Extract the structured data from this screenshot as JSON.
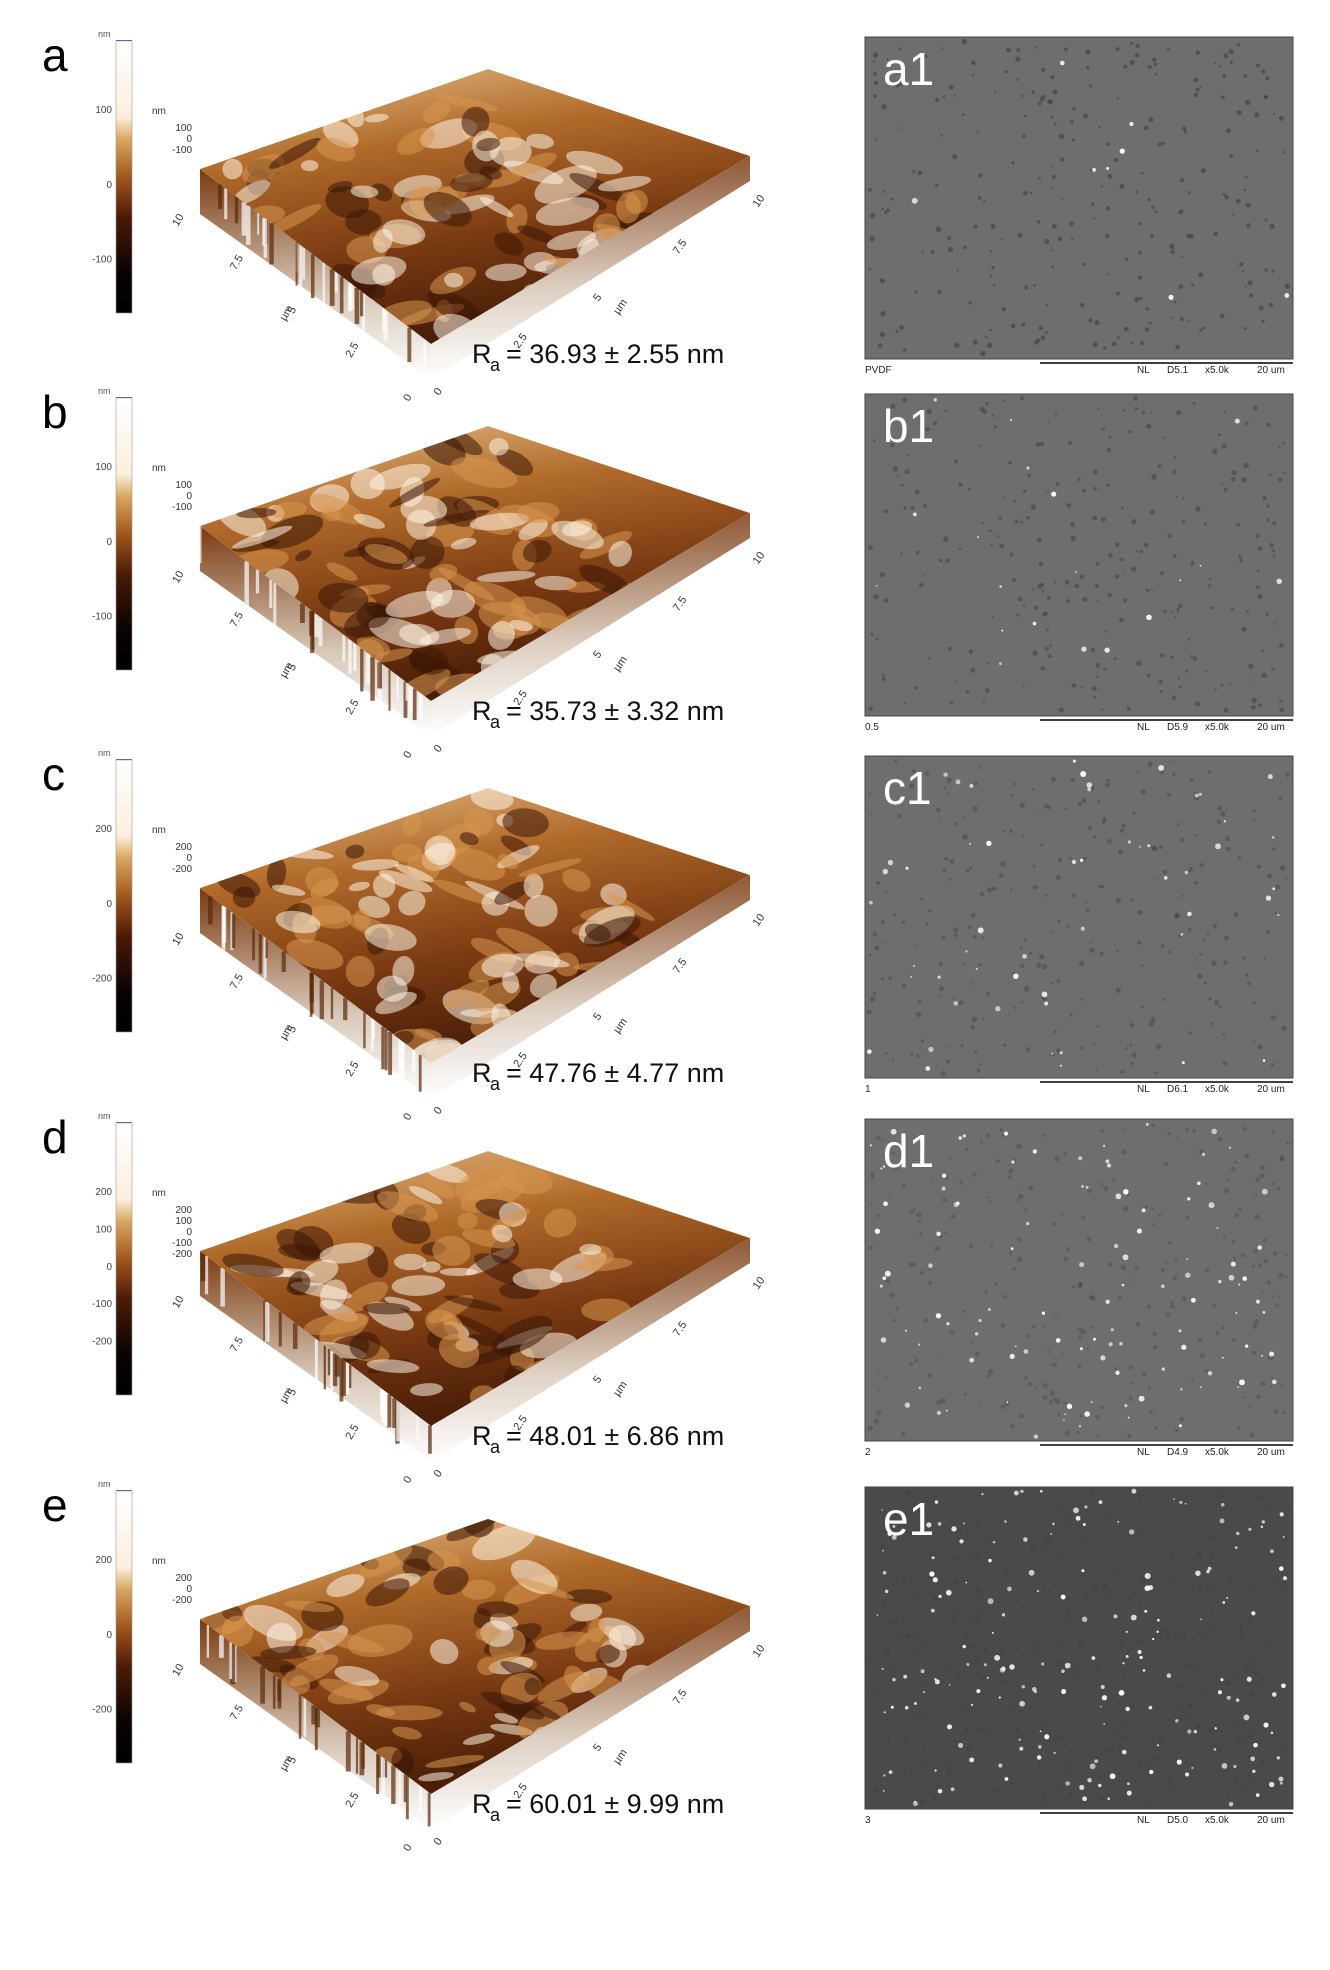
{
  "panels": [
    {
      "label": "a",
      "colorbar": {
        "unit": "nm",
        "ticks": [
          "100",
          "0",
          "-100"
        ]
      },
      "z_axis": {
        "unit": "nm",
        "ticks": [
          "100",
          "0",
          "-100"
        ]
      },
      "x_axis": {
        "unit": "µm",
        "ticks": [
          "0",
          "2.5",
          "5",
          "7.5",
          "10"
        ]
      },
      "y_axis": {
        "unit": "µm",
        "ticks": [
          "0",
          "2.5",
          "5",
          "7.5",
          "10"
        ]
      },
      "roughness": {
        "symbol": "R",
        "subscript": "a",
        "text": "= 36.93 ± 2.55 nm"
      },
      "sem": {
        "label": "a1",
        "info": [
          "PVDF",
          "NL",
          "D5.1",
          "x5.0k",
          "20 um"
        ]
      }
    },
    {
      "label": "b",
      "colorbar": {
        "unit": "nm",
        "ticks": [
          "100",
          "0",
          "-100"
        ]
      },
      "z_axis": {
        "unit": "nm",
        "ticks": [
          "100",
          "0",
          "-100"
        ]
      },
      "x_axis": {
        "unit": "µm",
        "ticks": [
          "0",
          "2.5",
          "5",
          "7.5",
          "10"
        ]
      },
      "y_axis": {
        "unit": "µm",
        "ticks": [
          "0",
          "2.5",
          "5",
          "7.5",
          "10"
        ]
      },
      "roughness": {
        "symbol": "R",
        "subscript": "a",
        "text": "= 35.73 ± 3.32 nm"
      },
      "sem": {
        "label": "b1",
        "info": [
          "0.5",
          "NL",
          "D5.9",
          "x5.0k",
          "20 um"
        ]
      }
    },
    {
      "label": "c",
      "colorbar": {
        "unit": "nm",
        "ticks": [
          "200",
          "0",
          "-200"
        ]
      },
      "z_axis": {
        "unit": "nm",
        "ticks": [
          "200",
          "0",
          "-200"
        ]
      },
      "x_axis": {
        "unit": "µm",
        "ticks": [
          "0",
          "2.5",
          "5",
          "7.5",
          "10"
        ]
      },
      "y_axis": {
        "unit": "µm",
        "ticks": [
          "0",
          "2.5",
          "5",
          "7.5",
          "10"
        ]
      },
      "roughness": {
        "symbol": "R",
        "subscript": "a",
        "text": "= 47.76 ± 4.77 nm"
      },
      "sem": {
        "label": "c1",
        "info": [
          "1",
          "NL",
          "D6.1",
          "x5.0k",
          "20 um"
        ]
      }
    },
    {
      "label": "d",
      "colorbar": {
        "unit": "nm",
        "ticks": [
          "200",
          "100",
          "0",
          "-100",
          "-200"
        ]
      },
      "z_axis": {
        "unit": "nm",
        "ticks": [
          "200",
          "100",
          "0",
          "-100",
          "-200"
        ]
      },
      "x_axis": {
        "unit": "µm",
        "ticks": [
          "0",
          "2.5",
          "5",
          "7.5",
          "10"
        ]
      },
      "y_axis": {
        "unit": "µm",
        "ticks": [
          "0",
          "2.5",
          "5",
          "7.5",
          "10"
        ]
      },
      "roughness": {
        "symbol": "R",
        "subscript": "a",
        "text": "= 48.01 ± 6.86 nm"
      },
      "sem": {
        "label": "d1",
        "info": [
          "2",
          "NL",
          "D4.9",
          "x5.0k",
          "20 um"
        ]
      }
    },
    {
      "label": "e",
      "colorbar": {
        "unit": "nm",
        "ticks": [
          "200",
          "0",
          "-200"
        ]
      },
      "z_axis": {
        "unit": "nm",
        "ticks": [
          "200",
          "0",
          "-200"
        ]
      },
      "x_axis": {
        "unit": "µm",
        "ticks": [
          "0",
          "2.5",
          "5",
          "7.5",
          "10"
        ]
      },
      "y_axis": {
        "unit": "µm",
        "ticks": [
          "0",
          "2.5",
          "5",
          "7.5",
          "10"
        ]
      },
      "roughness": {
        "symbol": "R",
        "subscript": "a",
        "text": "= 60.01 ± 9.99 nm"
      },
      "sem": {
        "label": "e1",
        "info": [
          "3",
          "NL",
          "D5.0",
          "x5.0k",
          "20 um"
        ]
      }
    }
  ]
}
